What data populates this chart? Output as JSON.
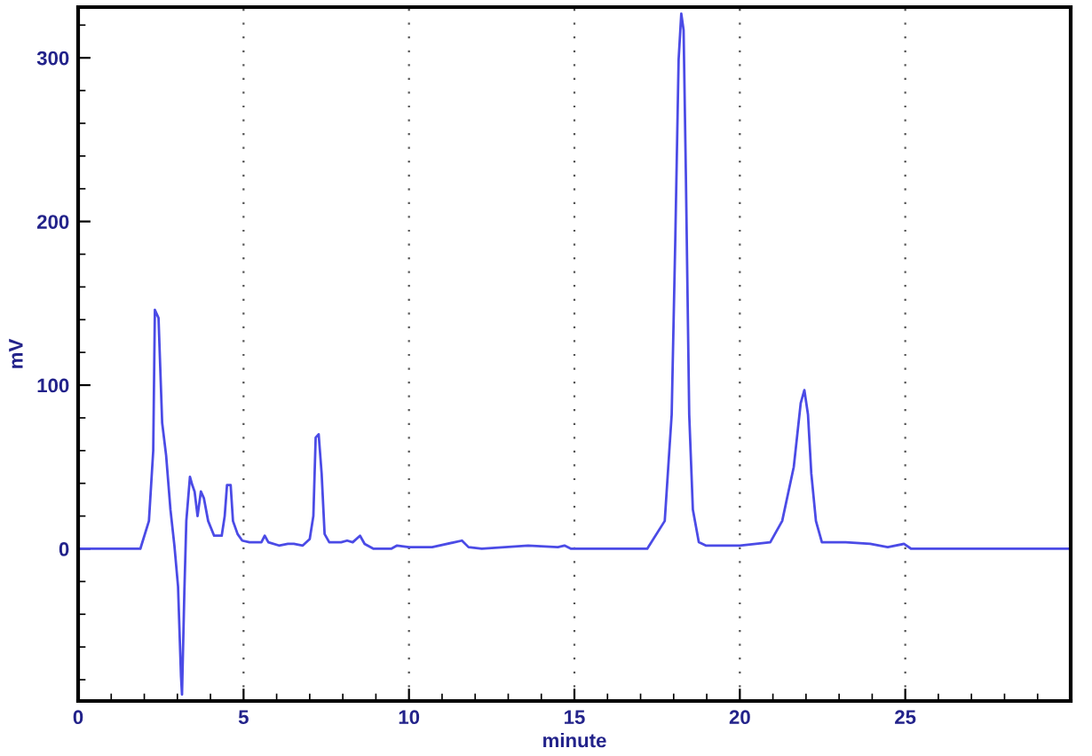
{
  "chart_data": {
    "type": "line",
    "xlabel": "minute",
    "ylabel": "mV",
    "xlim": [
      0,
      30
    ],
    "ylim": [
      -93,
      331
    ],
    "xticks": [
      0,
      5,
      10,
      15,
      20,
      25
    ],
    "yticks": [
      0,
      100,
      200,
      300
    ],
    "grid": "x",
    "marker": "none",
    "line_style": "solid",
    "series": [
      {
        "color": "#4b4be6",
        "x": [
          0,
          1.88,
          2.14,
          2.27,
          2.32,
          2.43,
          2.54,
          2.66,
          2.79,
          2.91,
          3.02,
          3.11,
          3.14,
          3.21,
          3.27,
          3.38,
          3.45,
          3.52,
          3.61,
          3.71,
          3.8,
          3.93,
          4.11,
          4.34,
          4.43,
          4.5,
          4.61,
          4.68,
          4.82,
          4.96,
          5.18,
          5.54,
          5.64,
          5.75,
          6.07,
          6.34,
          6.52,
          6.79,
          7.0,
          7.11,
          7.18,
          7.27,
          7.36,
          7.45,
          7.59,
          7.95,
          8.13,
          8.3,
          8.52,
          8.66,
          8.93,
          9.46,
          9.64,
          10.0,
          10.7,
          11.6,
          11.8,
          12.2,
          12.9,
          13.6,
          14.5,
          14.7,
          14.9,
          16.9,
          17.2,
          17.73,
          17.94,
          18.05,
          18.15,
          18.23,
          18.3,
          18.37,
          18.47,
          18.58,
          18.76,
          18.97,
          20.0,
          20.92,
          21.28,
          21.63,
          21.84,
          21.95,
          22.06,
          22.16,
          22.3,
          22.48,
          23.2,
          23.94,
          24.47,
          24.96,
          25.18,
          30
        ],
        "values": [
          0,
          0,
          17,
          60,
          146,
          141,
          77,
          57,
          24,
          2,
          -23,
          -78,
          -89,
          -27,
          17,
          44,
          39,
          35,
          20,
          35,
          31,
          17,
          8,
          8,
          20,
          39,
          39,
          17,
          9,
          5,
          4,
          4,
          8,
          4,
          2,
          3,
          3,
          2,
          6,
          20,
          68,
          70,
          46,
          9,
          4,
          4,
          5,
          4,
          8,
          3,
          0,
          0,
          2,
          1,
          1,
          5,
          1,
          0,
          1,
          2,
          1,
          2,
          0,
          0,
          0,
          17,
          82,
          190,
          299,
          327,
          317,
          227,
          82,
          24,
          4,
          2,
          2,
          4,
          17,
          50,
          89,
          97,
          82,
          46,
          17,
          4,
          4,
          3,
          1,
          3,
          0,
          0
        ]
      }
    ]
  }
}
